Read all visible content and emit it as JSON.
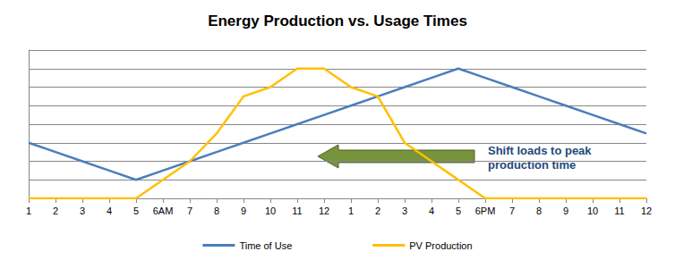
{
  "chart_data": {
    "type": "line",
    "title": "Energy Production vs. Usage Times",
    "categories": [
      "1",
      "2",
      "3",
      "4",
      "5",
      "6AM",
      "7",
      "8",
      "9",
      "10",
      "11",
      "12",
      "1",
      "2",
      "3",
      "4",
      "5",
      "6PM",
      "7",
      "8",
      "9",
      "10",
      "11",
      "12"
    ],
    "series": [
      {
        "name": "Time of Use",
        "color": "#4A7EBB",
        "values": [
          3,
          2.5,
          2,
          1.5,
          1,
          1.5,
          2,
          2.5,
          3,
          3.5,
          4,
          4.5,
          5,
          5.5,
          6,
          6.5,
          7,
          6.5,
          6,
          5.5,
          5,
          4.5,
          4,
          3.5
        ]
      },
      {
        "name": "PV Production",
        "color": "#FFC000",
        "values": [
          0,
          0,
          0,
          0,
          0,
          1,
          2,
          3.5,
          5.5,
          6,
          7,
          7,
          6,
          5.5,
          3,
          2,
          1,
          0,
          0,
          0,
          0,
          0,
          0,
          0
        ]
      }
    ],
    "ylim": [
      0,
      8
    ],
    "yticks": [
      0,
      1,
      2,
      3,
      4,
      5,
      6,
      7,
      8
    ],
    "grid": true,
    "legend": "bottom",
    "tick_labels": "x",
    "marker": "none",
    "annotation": "Shift loads to peak production time"
  }
}
